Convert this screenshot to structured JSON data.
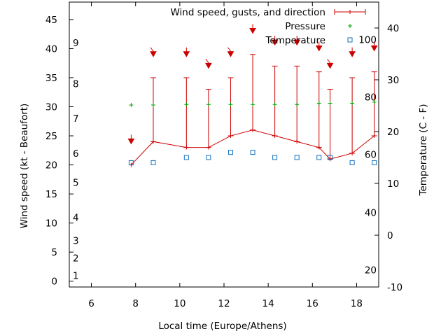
{
  "chart_data": {
    "type": "line",
    "title": "",
    "xlabel": "Local time (Europe/Athens)",
    "ylabel": "Wind speed (kt - Beaufort)",
    "y2label": "Temperature (C - F)",
    "xlim": [
      5,
      19
    ],
    "ylim": [
      -1,
      48
    ],
    "y2lim": [
      -10,
      45
    ],
    "x_ticks": [
      6,
      8,
      10,
      12,
      14,
      16,
      18
    ],
    "y_ticks": [
      0,
      5,
      10,
      15,
      20,
      25,
      30,
      35,
      40,
      45
    ],
    "y2_ticks": [
      -10,
      0,
      10,
      20,
      30,
      40
    ],
    "beaufort_labels": [
      {
        "label": "1",
        "y": 1
      },
      {
        "label": "2",
        "y": 4
      },
      {
        "label": "3",
        "y": 7
      },
      {
        "label": "4",
        "y": 11
      },
      {
        "label": "5",
        "y": 17
      },
      {
        "label": "6",
        "y": 22
      },
      {
        "label": "7",
        "y": 28
      },
      {
        "label": "8",
        "y": 34
      },
      {
        "label": "9",
        "y": 41
      }
    ],
    "fahrenheit_labels": [
      {
        "label": "20",
        "y2": -6.7
      },
      {
        "label": "40",
        "y2": 4.4
      },
      {
        "label": "60",
        "y2": 15.6
      },
      {
        "label": "80",
        "y2": 26.7
      },
      {
        "label": "100",
        "y2": 37.8
      }
    ],
    "legend_position": "top-right",
    "grid": false,
    "series": [
      {
        "name": "Wind speed, gusts, and direction",
        "color": "#cc0000",
        "x": [
          7.8,
          8.8,
          10.3,
          11.3,
          12.3,
          13.3,
          14.3,
          15.3,
          16.3,
          16.8,
          17.8,
          18.8
        ],
        "values": [
          20,
          24,
          23,
          23,
          25,
          26,
          25,
          24,
          23,
          21,
          22,
          25
        ],
        "gusts": [
          null,
          35,
          35,
          33,
          35,
          39,
          37,
          37,
          36,
          33,
          35,
          36
        ],
        "direction_arrow_y": [
          24,
          39,
          39,
          37,
          39,
          43,
          41,
          41,
          40,
          37,
          39,
          40
        ],
        "direction_dx": [
          0,
          1,
          0,
          1,
          1,
          0,
          0,
          0,
          0,
          1,
          0,
          0
        ]
      },
      {
        "name": "Pressure",
        "color": "#00a000",
        "x": [
          7.8,
          8.8,
          10.3,
          11.3,
          12.3,
          13.3,
          14.3,
          15.3,
          16.3,
          16.8,
          17.8,
          18.8
        ],
        "values": [
          30.3,
          30.3,
          30.4,
          30.4,
          30.4,
          30.4,
          30.4,
          30.4,
          30.6,
          30.6,
          30.6,
          30.8
        ]
      },
      {
        "name": "Temperature",
        "color": "#1070c0",
        "x": [
          7.8,
          8.8,
          10.3,
          11.3,
          12.3,
          13.3,
          14.3,
          15.3,
          16.3,
          16.8,
          17.8,
          18.8
        ],
        "values": [
          14,
          14,
          15,
          15,
          16,
          16,
          15,
          15,
          15,
          15,
          14,
          14
        ]
      }
    ]
  }
}
